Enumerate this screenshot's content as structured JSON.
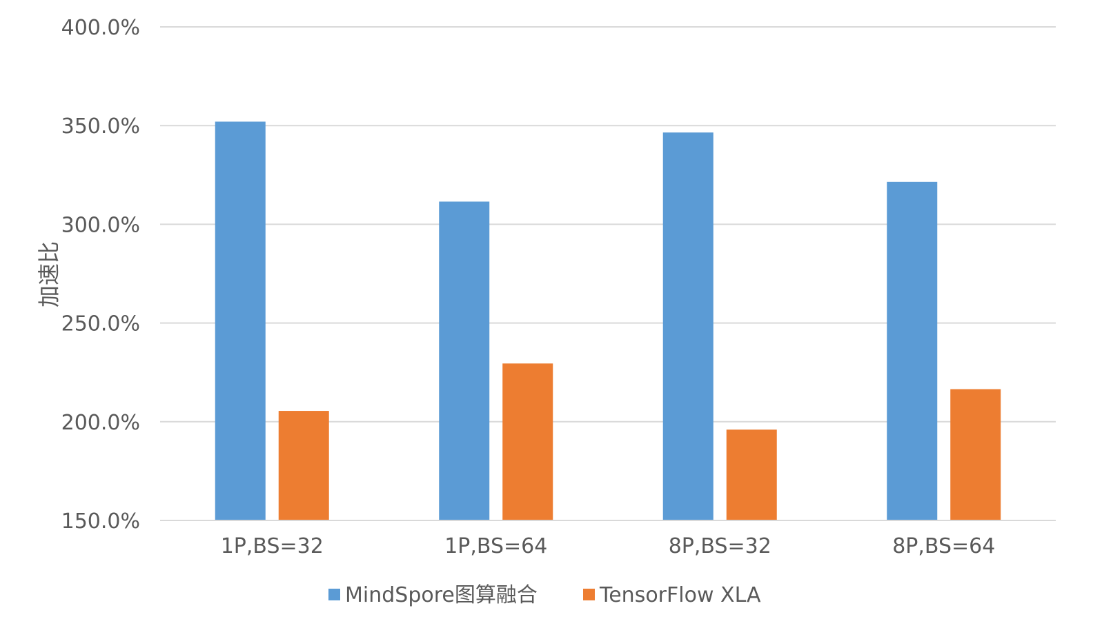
{
  "chart_data": {
    "type": "bar",
    "categories": [
      "1P,BS=32",
      "1P,BS=64",
      "8P,BS=32",
      "8P,BS=64"
    ],
    "series": [
      {
        "name": "MindSpore图算融合",
        "values": [
          352.0,
          311.5,
          346.5,
          321.5
        ],
        "color": "#5b9bd5"
      },
      {
        "name": "TensorFlow XLA",
        "values": [
          205.5,
          229.5,
          196.0,
          216.5
        ],
        "color": "#ed7d31"
      }
    ],
    "ylabel": "加速比",
    "xlabel": "",
    "ylim": [
      150,
      400
    ],
    "yticks": [
      "150.0%",
      "200.0%",
      "250.0%",
      "300.0%",
      "350.0%",
      "400.0%"
    ],
    "grid": true,
    "legend_position": "bottom"
  }
}
